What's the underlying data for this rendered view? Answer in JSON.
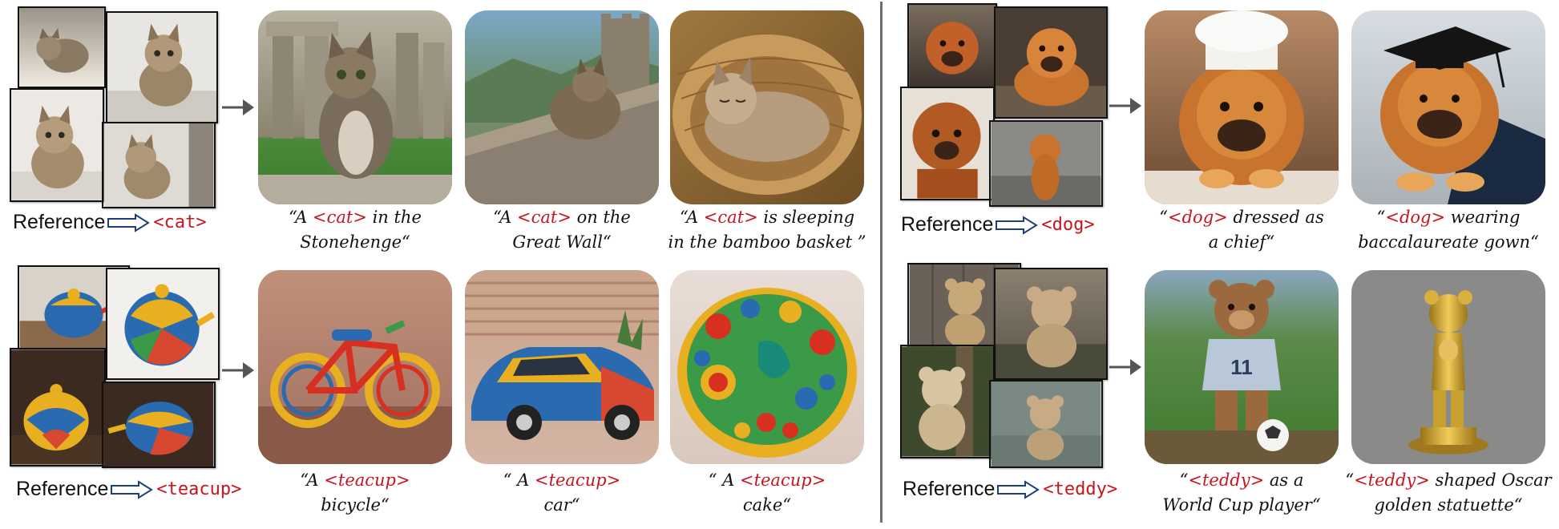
{
  "panels": [
    {
      "id": "cat",
      "reference_word": "Reference",
      "token": "<cat>",
      "captions": [
        {
          "line1_pre": "“A ",
          "line1_tok": "<cat>",
          "line1_post": " in the",
          "line2": "Stonehenge“"
        },
        {
          "line1_pre": "“A ",
          "line1_tok": "<cat>",
          "line1_post": " on the",
          "line2": "Great Wall“"
        },
        {
          "line1_pre": "“A ",
          "line1_tok": "<cat>",
          "line1_post": " is sleeping",
          "line2": "in the bamboo basket ”"
        }
      ]
    },
    {
      "id": "teacup",
      "reference_word": "Reference",
      "token": "<teacup>",
      "captions": [
        {
          "line1_pre": "“A ",
          "line1_tok": "<teacup>",
          "line1_post": "",
          "line2": "bicycle“"
        },
        {
          "line1_pre": "“ A ",
          "line1_tok": "<teacup>",
          "line1_post": "",
          "line2": "car“"
        },
        {
          "line1_pre": "“ A ",
          "line1_tok": "<teacup>",
          "line1_post": "",
          "line2": "cake“"
        }
      ]
    },
    {
      "id": "dog",
      "reference_word": "Reference",
      "token": "<dog>",
      "captions": [
        {
          "line1_pre": "“",
          "line1_tok": "<dog>",
          "line1_post": " dressed as",
          "line2": "a chief“"
        },
        {
          "line1_pre": "“",
          "line1_tok": "<dog>",
          "line1_post": " wearing",
          "line2": "baccalaureate gown“"
        }
      ]
    },
    {
      "id": "teddy",
      "reference_word": "Reference",
      "token": "<teddy>",
      "captions": [
        {
          "line1_pre": "“",
          "line1_tok": "<teddy>",
          "line1_post": " as a",
          "line2": "World Cup player“"
        },
        {
          "line1_pre": "“",
          "line1_tok": "<teddy>",
          "line1_post": " shaped Oscar",
          "line2": "golden statuette“"
        }
      ]
    }
  ],
  "colors": {
    "token": "#c8141e",
    "divider": "#6e6e6e",
    "arrow": "#555555"
  },
  "icons": [
    "hollow-right-arrow-icon",
    "right-arrow-icon"
  ]
}
